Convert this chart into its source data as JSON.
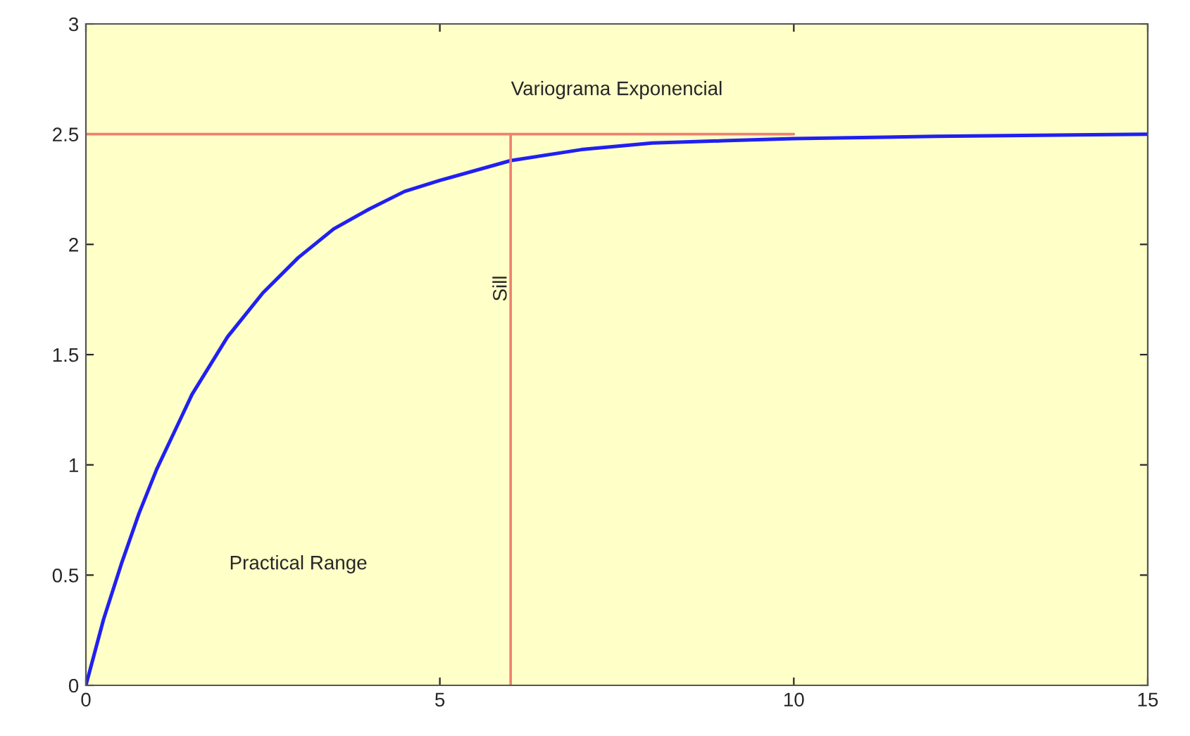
{
  "chart_data": {
    "type": "line",
    "title": "Variograma Exponencial",
    "xlim": [
      0,
      15
    ],
    "ylim": [
      0,
      3
    ],
    "xticks": [
      0,
      5,
      10,
      15
    ],
    "yticks": [
      0,
      0.5,
      1,
      1.5,
      2,
      2.5,
      3
    ],
    "grid": false,
    "series": [
      {
        "color": "#2020f0",
        "x": [
          0,
          0.25,
          0.5,
          0.75,
          1,
          1.5,
          2,
          2.5,
          3,
          3.5,
          4,
          4.5,
          5,
          6,
          7,
          8,
          9,
          10,
          12,
          15
        ],
        "values": [
          0,
          0.3,
          0.55,
          0.78,
          0.98,
          1.32,
          1.58,
          1.78,
          1.94,
          2.07,
          2.16,
          2.24,
          2.29,
          2.38,
          2.43,
          2.46,
          2.47,
          2.48,
          2.49,
          2.5
        ]
      },
      {
        "color": "#f08070",
        "x": [
          0,
          10
        ],
        "values": [
          2.5,
          2.5
        ]
      },
      {
        "color": "#f08070",
        "x": [
          6,
          6
        ],
        "values": [
          0,
          2.5
        ]
      }
    ],
    "annotations": [
      {
        "text": "Sill",
        "x": 6,
        "y": 1.8
      },
      "Practical Range"
    ]
  }
}
